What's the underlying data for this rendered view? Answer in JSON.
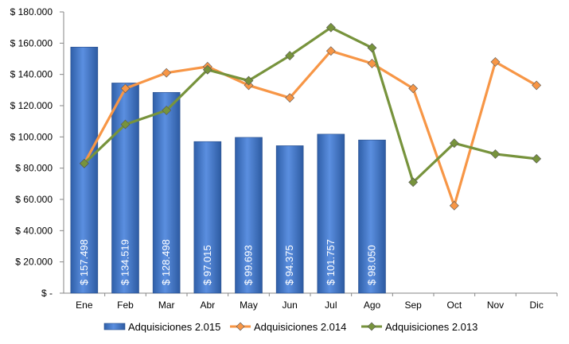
{
  "chart_data": {
    "type": "bar",
    "categories": [
      "Ene",
      "Feb",
      "Mar",
      "Abr",
      "May",
      "Jun",
      "Jul",
      "Ago",
      "Sep",
      "Oct",
      "Nov",
      "Dic"
    ],
    "ylim": [
      0,
      180000
    ],
    "yticks": [
      0,
      20000,
      40000,
      60000,
      80000,
      100000,
      120000,
      140000,
      160000,
      180000
    ],
    "ytick_labels": [
      "$ -",
      "$ 20.000",
      "$ 40.000",
      "$ 60.000",
      "$ 80.000",
      "$ 100.000",
      "$ 120.000",
      "$ 140.000",
      "$ 160.000",
      "$ 180.000"
    ],
    "grid": false,
    "legend_position": "bottom",
    "series": [
      {
        "name": "Adquisiciones 2.015",
        "kind": "bar",
        "color": "#4472C4",
        "values": [
          157498,
          134519,
          128498,
          97015,
          99693,
          94375,
          101757,
          98050,
          null,
          null,
          null,
          null
        ],
        "data_labels": [
          "$ 157.498",
          "$ 134.519",
          "$ 128.498",
          "$ 97.015",
          "$ 99.693",
          "$ 94.375",
          "$ 101.757",
          "$ 98.050"
        ]
      },
      {
        "name": "Adquisiciones 2.014",
        "kind": "line",
        "color": "#F79646",
        "values": [
          83000,
          131000,
          141000,
          145000,
          133000,
          125000,
          155000,
          147000,
          131000,
          56000,
          148000,
          133000
        ]
      },
      {
        "name": "Adquisiciones 2.013",
        "kind": "line",
        "color": "#77933C",
        "values": [
          83000,
          108000,
          117000,
          143000,
          136000,
          152000,
          170000,
          157000,
          71000,
          96000,
          89000,
          86000
        ]
      }
    ]
  }
}
